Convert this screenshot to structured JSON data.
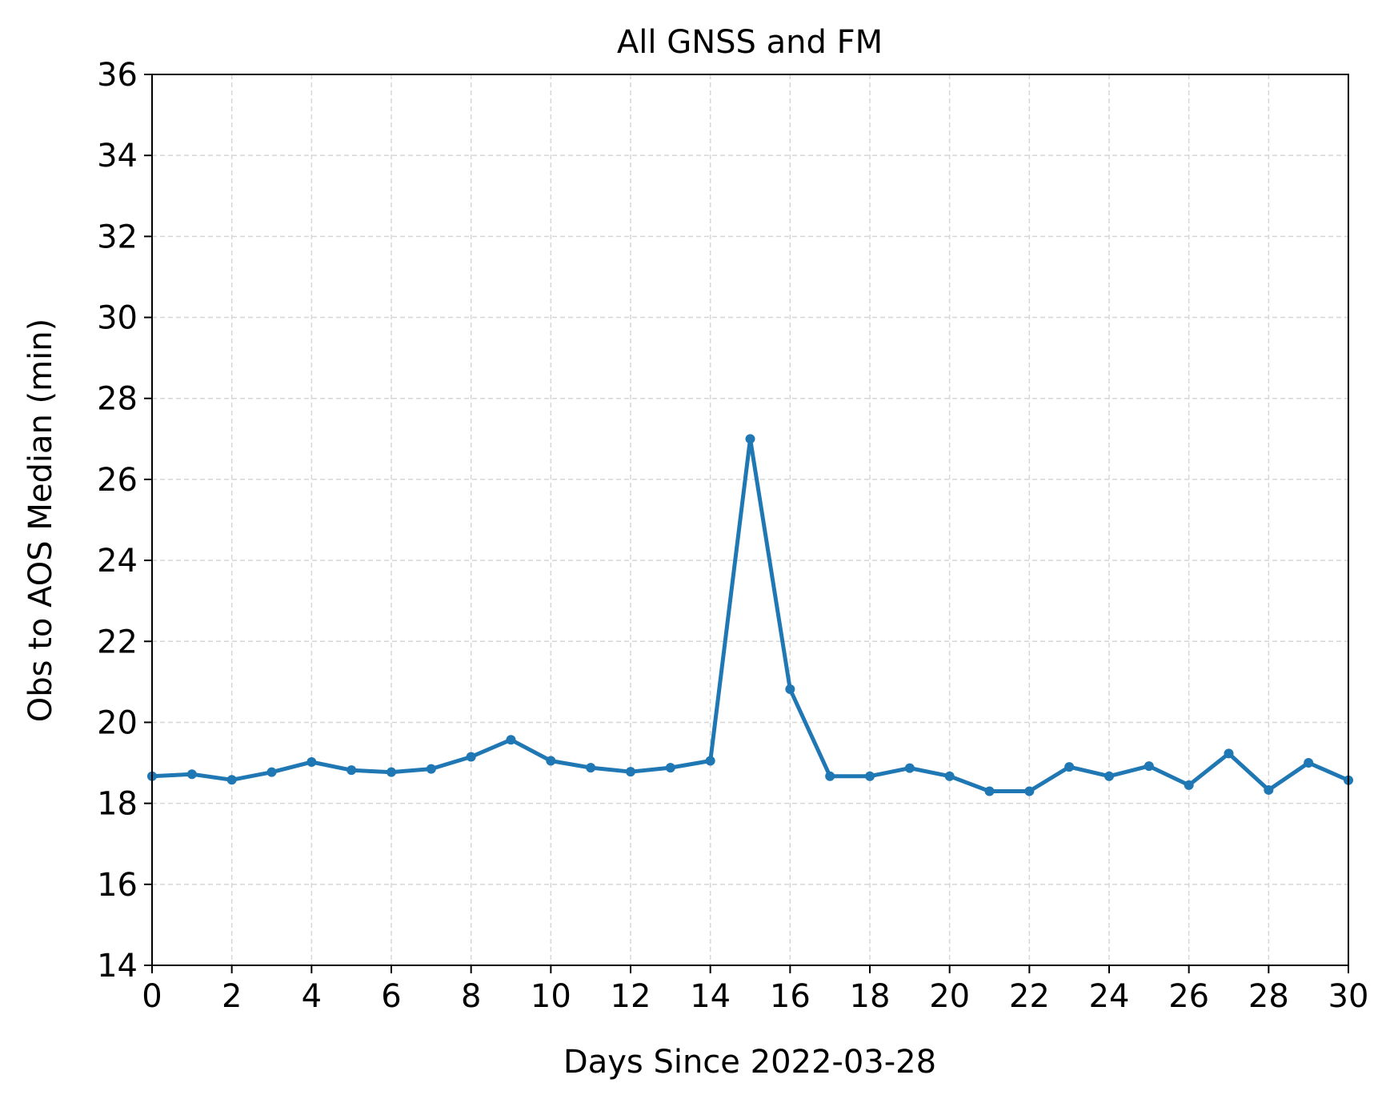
{
  "chart_data": {
    "type": "line",
    "title": "All GNSS and FM",
    "xlabel": "Days Since 2022-03-28",
    "ylabel": "Obs to AOS Median (min)",
    "xlim": [
      0,
      30
    ],
    "ylim": [
      14,
      36
    ],
    "xticks": [
      0,
      2,
      4,
      6,
      8,
      10,
      12,
      14,
      16,
      18,
      20,
      22,
      24,
      26,
      28,
      30
    ],
    "yticks": [
      14,
      16,
      18,
      20,
      22,
      24,
      26,
      28,
      30,
      32,
      34,
      36
    ],
    "grid": true,
    "series": [
      {
        "color": "#1f77b4",
        "marker": "circle",
        "x": [
          0,
          1,
          2,
          3,
          4,
          5,
          6,
          7,
          8,
          9,
          10,
          11,
          12,
          13,
          14,
          15,
          16,
          17,
          18,
          19,
          20,
          21,
          22,
          23,
          24,
          25,
          26,
          27,
          28,
          29,
          30
        ],
        "y": [
          18.67,
          18.72,
          18.58,
          18.77,
          19.02,
          18.82,
          18.77,
          18.85,
          19.15,
          19.57,
          19.05,
          18.88,
          18.78,
          18.88,
          19.05,
          27.0,
          20.82,
          18.67,
          18.67,
          18.87,
          18.67,
          18.3,
          18.3,
          18.9,
          18.67,
          18.92,
          18.45,
          19.23,
          18.33,
          19.0,
          18.57
        ]
      }
    ]
  }
}
